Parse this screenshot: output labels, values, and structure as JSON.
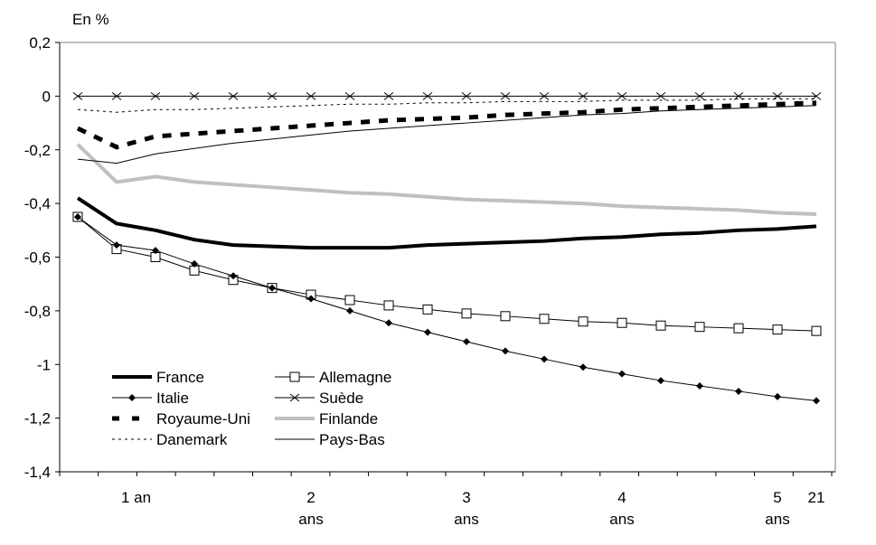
{
  "chart_data": {
    "type": "line",
    "title": "",
    "ylabel": "En %",
    "xlabel": "",
    "ylim": [
      -1.4,
      0.2
    ],
    "yticks": [
      0.2,
      0,
      -0.2,
      -0.4,
      -0.6,
      -0.8,
      -1,
      -1.2,
      -1.4
    ],
    "ytick_labels": [
      "0,2",
      "0",
      "-0,2",
      "-0,4",
      "-0,6",
      "-0,8",
      "-1",
      "-1,2",
      "-1,4"
    ],
    "x": [
      1,
      2,
      3,
      4,
      5,
      6,
      7,
      8,
      9,
      10,
      11,
      12,
      13,
      14,
      15,
      16,
      17,
      18,
      19,
      20
    ],
    "xtick_labels": [
      {
        "lines": [
          "1 an"
        ],
        "at": 2.5
      },
      {
        "lines": [
          "2",
          "ans"
        ],
        "at": 7
      },
      {
        "lines": [
          "3",
          "ans"
        ],
        "at": 11
      },
      {
        "lines": [
          "4",
          "ans"
        ],
        "at": 15
      },
      {
        "lines": [
          "5",
          "ans"
        ],
        "at": 19
      },
      {
        "lines": [
          "21"
        ],
        "at": 20
      }
    ],
    "grid": false,
    "legend_position": "bottom-left",
    "series": [
      {
        "name": "France",
        "style": "thick-solid",
        "color": "#000000",
        "values": [
          -0.38,
          -0.475,
          -0.5,
          -0.535,
          -0.555,
          -0.56,
          -0.565,
          -0.565,
          -0.565,
          -0.555,
          -0.55,
          -0.545,
          -0.54,
          -0.53,
          -0.525,
          -0.515,
          -0.51,
          -0.5,
          -0.495,
          -0.485
        ]
      },
      {
        "name": "Allemagne",
        "style": "square-marker",
        "color": "#000000",
        "values": [
          -0.45,
          -0.57,
          -0.6,
          -0.65,
          -0.685,
          -0.715,
          -0.74,
          -0.76,
          -0.78,
          -0.795,
          -0.81,
          -0.82,
          -0.83,
          -0.84,
          -0.845,
          -0.855,
          -0.86,
          -0.865,
          -0.87,
          -0.875
        ]
      },
      {
        "name": "Italie",
        "style": "diamond-marker",
        "color": "#000000",
        "values": [
          -0.45,
          -0.555,
          -0.575,
          -0.625,
          -0.67,
          -0.715,
          -0.755,
          -0.8,
          -0.845,
          -0.88,
          -0.915,
          -0.95,
          -0.98,
          -1.01,
          -1.035,
          -1.06,
          -1.08,
          -1.1,
          -1.12,
          -1.135
        ]
      },
      {
        "name": "Suède",
        "style": "x-marker",
        "color": "#000000",
        "values": [
          0,
          0,
          0,
          0,
          0,
          0,
          0,
          0,
          0,
          0,
          0,
          0,
          0,
          0,
          0,
          0,
          0,
          0,
          0,
          0
        ]
      },
      {
        "name": "Royaume-Uni",
        "style": "thick-dash",
        "color": "#000000",
        "values": [
          -0.12,
          -0.19,
          -0.15,
          -0.14,
          -0.13,
          -0.12,
          -0.11,
          -0.1,
          -0.09,
          -0.085,
          -0.08,
          -0.07,
          -0.065,
          -0.06,
          -0.05,
          -0.045,
          -0.04,
          -0.035,
          -0.03,
          -0.025
        ]
      },
      {
        "name": "Finlande",
        "style": "thick-solid",
        "color": "#c0c0c0",
        "values": [
          -0.18,
          -0.32,
          -0.3,
          -0.32,
          -0.33,
          -0.34,
          -0.35,
          -0.36,
          -0.365,
          -0.375,
          -0.385,
          -0.39,
          -0.395,
          -0.4,
          -0.41,
          -0.415,
          -0.42,
          -0.425,
          -0.435,
          -0.44
        ]
      },
      {
        "name": "Danemark",
        "style": "dotted",
        "color": "#000000",
        "values": [
          -0.05,
          -0.06,
          -0.05,
          -0.05,
          -0.045,
          -0.04,
          -0.035,
          -0.03,
          -0.03,
          -0.025,
          -0.025,
          -0.02,
          -0.02,
          -0.02,
          -0.015,
          -0.015,
          -0.015,
          -0.01,
          -0.01,
          -0.01
        ]
      },
      {
        "name": "Pays-Bas",
        "style": "thin-solid",
        "color": "#000000",
        "values": [
          -0.235,
          -0.25,
          -0.215,
          -0.195,
          -0.175,
          -0.16,
          -0.145,
          -0.13,
          -0.12,
          -0.11,
          -0.1,
          -0.09,
          -0.08,
          -0.07,
          -0.065,
          -0.055,
          -0.05,
          -0.045,
          -0.04,
          -0.035
        ]
      }
    ],
    "legend_order": [
      "France",
      "Allemagne",
      "Italie",
      "Suède",
      "Royaume-Uni",
      "Finlande",
      "Danemark",
      "Pays-Bas"
    ]
  }
}
